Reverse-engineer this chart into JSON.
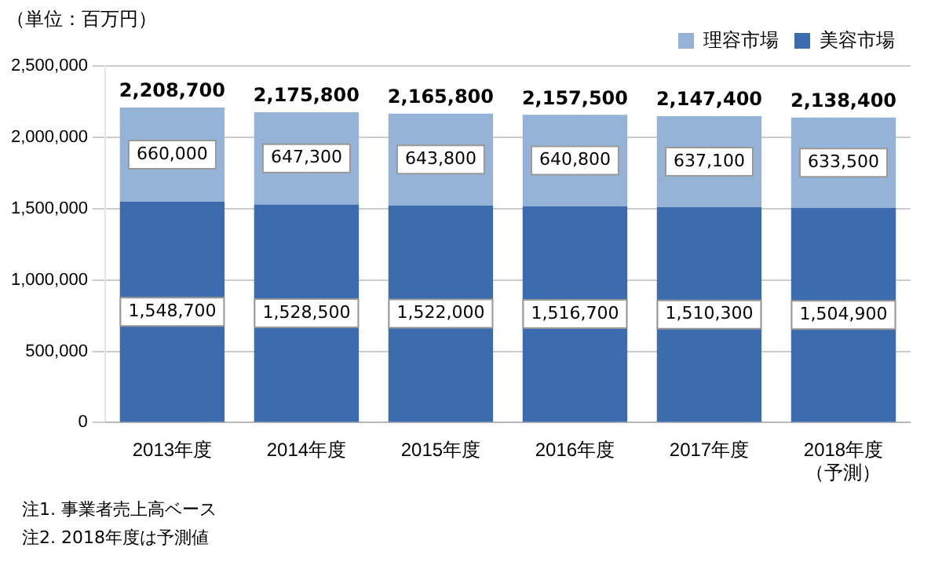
{
  "chart_data": {
    "type": "bar",
    "stacked": true,
    "ylabel": "（単位：百万円）",
    "categories": [
      "2013年度",
      "2014年度",
      "2015年度",
      "2016年度",
      "2017年度",
      "2018年度（予測）"
    ],
    "series": [
      {
        "name": "美容市場",
        "color": "#3d6cae",
        "values": [
          1548700,
          1528500,
          1522000,
          1516700,
          1510300,
          1504900
        ],
        "value_labels": [
          "1,548,700",
          "1,528,500",
          "1,522,000",
          "1,516,700",
          "1,510,300",
          "1,504,900"
        ]
      },
      {
        "name": "理容市場",
        "color": "#95b3d7",
        "values": [
          660000,
          647300,
          643800,
          640800,
          637100,
          633500
        ],
        "value_labels": [
          "660,000",
          "647,300",
          "643,800",
          "640,800",
          "637,100",
          "633,500"
        ]
      }
    ],
    "totals": [
      "2,208,700",
      "2,175,800",
      "2,165,800",
      "2,157,500",
      "2,147,400",
      "2,138,400"
    ],
    "ylim": [
      0,
      2500000
    ],
    "yticks": [
      {
        "value": 0,
        "label": "0"
      },
      {
        "value": 500000,
        "label": "500,000"
      },
      {
        "value": 1000000,
        "label": "1,000,000"
      },
      {
        "value": 1500000,
        "label": "1,500,000"
      },
      {
        "value": 2000000,
        "label": "2,000,000"
      },
      {
        "value": 2500000,
        "label": "2,500,000"
      }
    ],
    "grid": "y",
    "legend": "top right",
    "annotations": [
      "注1. 事業者売上高ベース",
      "注2. 2018年度は予測値"
    ]
  }
}
